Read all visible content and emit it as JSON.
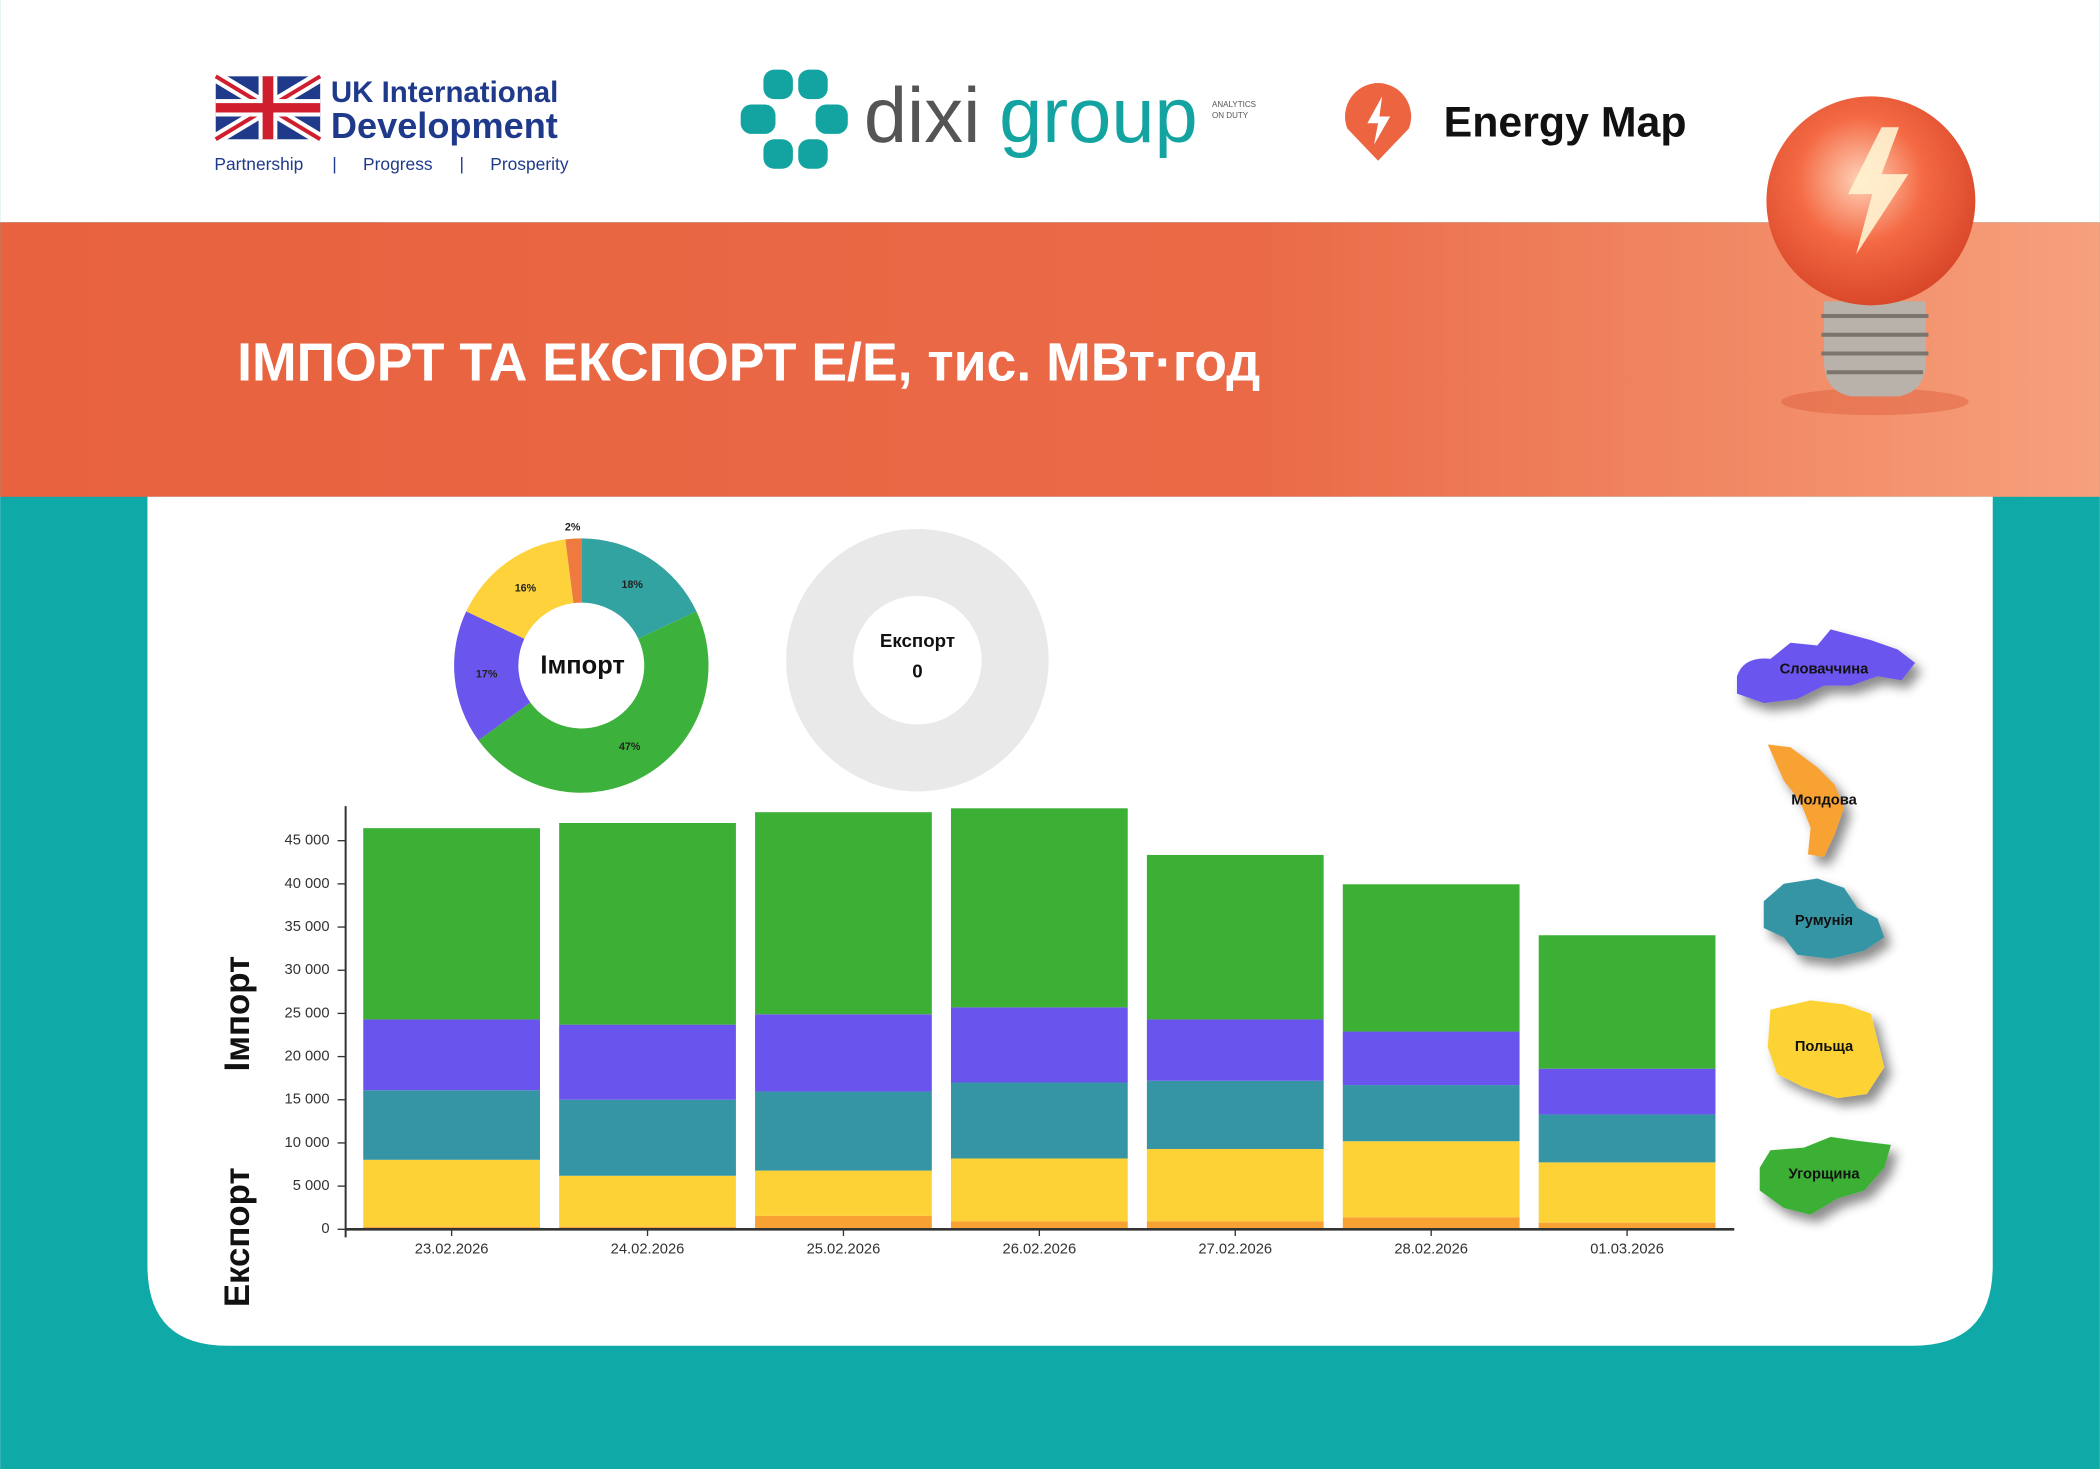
{
  "header": {
    "title": "ІМПОРТ ТА ЕКСПОРТ Е/Е, тис. МВт·год",
    "uk_line1": "UK International",
    "uk_line2": "Development",
    "uk_tagline": [
      "Partnership",
      "|",
      "Progress",
      "|",
      "Prosperity"
    ],
    "dixi_part1": "dixi",
    "dixi_part2": "group",
    "dixi_tag1": "ANALYTICS",
    "dixi_tag2": "ON DUTY",
    "energy_map": "Energy Map"
  },
  "chart_data": [
    {
      "type": "pie",
      "title": "Імпорт",
      "values": [
        18,
        47,
        17,
        16,
        2
      ],
      "value_labels": [
        "18%",
        "47%",
        "17%",
        "16%",
        "2%"
      ],
      "colors": [
        "#33a3a1",
        "#3cb23c",
        "#6a56ec",
        "#fdd23a",
        "#ef7a3f"
      ]
    },
    {
      "type": "pie",
      "title": "Експорт",
      "total": 0,
      "values": [],
      "color": "#e9e9e9"
    },
    {
      "type": "stacked-bar",
      "categories": [
        "23.02.2026",
        "24.02.2026",
        "25.02.2026",
        "26.02.2026",
        "27.02.2026",
        "28.02.2026",
        "01.03.2026"
      ],
      "y_labels": [
        "Імпорт",
        "Експорт"
      ],
      "series": [
        {
          "name": "Молдова",
          "color": "#f7a233",
          "values": [
            300,
            300,
            1550,
            930,
            930,
            1400,
            770
          ]
        },
        {
          "name": "Польща",
          "color": "#fdd236",
          "values": [
            7750,
            5900,
            5250,
            7270,
            8370,
            8800,
            6980
          ]
        },
        {
          "name": "Румунія",
          "color": "#3595a5",
          "values": [
            8050,
            8800,
            9150,
            8800,
            7900,
            6500,
            5550
          ]
        },
        {
          "name": "Словаччина",
          "color": "#6a54ee",
          "values": [
            8200,
            8700,
            8950,
            8700,
            7100,
            6200,
            5300
          ]
        },
        {
          "name": "Угорщина",
          "color": "#3bb035",
          "values": [
            22150,
            23350,
            23400,
            23050,
            19050,
            17050,
            15450
          ]
        }
      ],
      "ylim": [
        0,
        49000
      ],
      "yticks": [
        0,
        {
          "value": 5000,
          "label": "5 000"
        },
        {
          "value": 10000,
          "label": "10 000"
        },
        {
          "value": 15000,
          "label": "15 000"
        },
        {
          "value": 20000,
          "label": "20 000"
        },
        {
          "value": 25000,
          "label": "25 000"
        },
        {
          "value": 30000,
          "label": "30 000"
        },
        {
          "value": 35000,
          "label": "35 000"
        },
        {
          "value": 40000,
          "label": "40 000"
        },
        {
          "value": 45000,
          "label": "45 000"
        }
      ]
    }
  ]
}
